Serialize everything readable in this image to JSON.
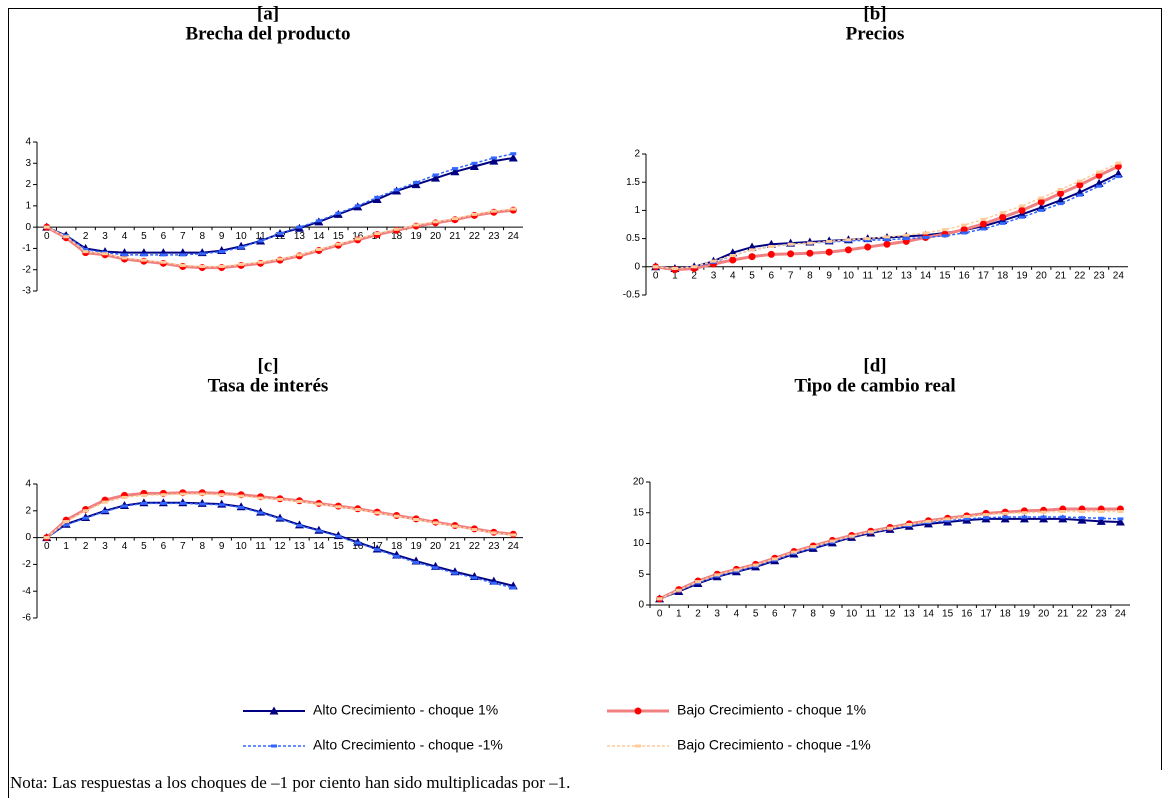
{
  "chart_data": [
    {
      "type": "line",
      "label": "[a]",
      "title": "Brecha del producto",
      "categories": [
        "0",
        "1",
        "2",
        "3",
        "4",
        "5",
        "6",
        "7",
        "8",
        "9",
        "10",
        "11",
        "12",
        "13",
        "14",
        "15",
        "16",
        "17",
        "18",
        "19",
        "20",
        "21",
        "22",
        "23",
        "24"
      ],
      "ylim": [
        -3,
        4
      ],
      "yticks": [
        -3,
        -2,
        -1,
        0,
        1,
        2,
        3,
        4
      ],
      "series": [
        {
          "name": "Alto Crecimiento - choque 1%",
          "color": "#000080",
          "marker": "triangle",
          "dashed": false,
          "values": [
            0,
            -0.4,
            -1.0,
            -1.15,
            -1.2,
            -1.2,
            -1.2,
            -1.2,
            -1.2,
            -1.1,
            -0.9,
            -0.65,
            -0.3,
            -0.05,
            0.25,
            0.6,
            0.95,
            1.3,
            1.7,
            2.0,
            2.3,
            2.6,
            2.85,
            3.1,
            3.25
          ]
        },
        {
          "name": "Bajo Crecimiento - choque 1%",
          "color": "#f08080",
          "marker": "circle",
          "dashed": false,
          "values": [
            0,
            -0.5,
            -1.2,
            -1.3,
            -1.5,
            -1.6,
            -1.7,
            -1.85,
            -1.9,
            -1.9,
            -1.8,
            -1.7,
            -1.55,
            -1.35,
            -1.1,
            -0.85,
            -0.6,
            -0.35,
            -0.15,
            0.05,
            0.2,
            0.35,
            0.55,
            0.7,
            0.8
          ]
        },
        {
          "name": "Alto Crecimiento - choque -1%",
          "color": "#3366ff",
          "marker": "dash",
          "dashed": true,
          "values": [
            0,
            -0.4,
            -1.05,
            -1.2,
            -1.3,
            -1.3,
            -1.3,
            -1.3,
            -1.25,
            -1.15,
            -0.95,
            -0.65,
            -0.3,
            0,
            0.3,
            0.65,
            1.0,
            1.4,
            1.75,
            2.1,
            2.45,
            2.75,
            3.0,
            3.25,
            3.45
          ]
        },
        {
          "name": "Bajo Crecimiento - choque -1%",
          "color": "#ffcc99",
          "marker": "dash",
          "dashed": true,
          "values": [
            0,
            -0.45,
            -1.15,
            -1.25,
            -1.45,
            -1.55,
            -1.65,
            -1.8,
            -1.85,
            -1.85,
            -1.75,
            -1.65,
            -1.5,
            -1.3,
            -1.05,
            -0.8,
            -0.55,
            -0.3,
            -0.1,
            0.1,
            0.25,
            0.4,
            0.6,
            0.75,
            0.85
          ]
        }
      ]
    },
    {
      "type": "line",
      "label": "[b]",
      "title": "Precios",
      "categories": [
        "0",
        "1",
        "2",
        "3",
        "4",
        "5",
        "6",
        "7",
        "8",
        "9",
        "10",
        "11",
        "12",
        "13",
        "14",
        "15",
        "16",
        "17",
        "18",
        "19",
        "20",
        "21",
        "22",
        "23",
        "24"
      ],
      "ylim": [
        -0.5,
        2
      ],
      "yticks": [
        -0.5,
        0,
        0.5,
        1,
        1.5,
        2
      ],
      "series": [
        {
          "name": "Alto Crecimiento - choque 1%",
          "color": "#000080",
          "marker": "triangle",
          "dashed": false,
          "values": [
            0,
            -0.03,
            0,
            0.1,
            0.25,
            0.35,
            0.4,
            0.42,
            0.44,
            0.46,
            0.48,
            0.5,
            0.52,
            0.54,
            0.56,
            0.6,
            0.65,
            0.72,
            0.82,
            0.93,
            1.05,
            1.18,
            1.32,
            1.48,
            1.65
          ]
        },
        {
          "name": "Bajo Crecimiento - choque 1%",
          "color": "#f08080",
          "marker": "circle",
          "dashed": false,
          "values": [
            0,
            -0.05,
            -0.03,
            0.05,
            0.12,
            0.18,
            0.22,
            0.23,
            0.24,
            0.26,
            0.3,
            0.35,
            0.4,
            0.45,
            0.52,
            0.58,
            0.66,
            0.76,
            0.88,
            1.0,
            1.15,
            1.3,
            1.45,
            1.62,
            1.78
          ]
        },
        {
          "name": "Alto Crecimiento - choque -1%",
          "color": "#3366ff",
          "marker": "dash",
          "dashed": true,
          "values": [
            0,
            -0.03,
            0,
            0.08,
            0.2,
            0.3,
            0.36,
            0.4,
            0.42,
            0.44,
            0.46,
            0.47,
            0.48,
            0.5,
            0.52,
            0.55,
            0.6,
            0.67,
            0.77,
            0.88,
            1.0,
            1.12,
            1.27,
            1.43,
            1.6
          ]
        },
        {
          "name": "Bajo Crecimiento - choque -1%",
          "color": "#ffcc99",
          "marker": "dash",
          "dashed": true,
          "values": [
            0,
            -0.03,
            0,
            0.1,
            0.2,
            0.3,
            0.36,
            0.4,
            0.42,
            0.45,
            0.48,
            0.5,
            0.53,
            0.56,
            0.6,
            0.66,
            0.74,
            0.84,
            0.96,
            1.08,
            1.22,
            1.37,
            1.52,
            1.68,
            1.84
          ]
        }
      ]
    },
    {
      "type": "line",
      "label": "[c]",
      "title": "Tasa de interés",
      "categories": [
        "0",
        "1",
        "2",
        "3",
        "4",
        "5",
        "6",
        "7",
        "8",
        "9",
        "10",
        "11",
        "12",
        "13",
        "14",
        "15",
        "16",
        "17",
        "18",
        "19",
        "20",
        "21",
        "22",
        "23",
        "24"
      ],
      "ylim": [
        -6,
        4
      ],
      "yticks": [
        -6,
        -4,
        -2,
        0,
        2,
        4
      ],
      "series": [
        {
          "name": "Alto Crecimiento - choque 1%",
          "color": "#000080",
          "marker": "triangle",
          "dashed": false,
          "values": [
            0,
            1.0,
            1.5,
            2.0,
            2.4,
            2.6,
            2.6,
            2.6,
            2.55,
            2.5,
            2.3,
            1.9,
            1.45,
            0.95,
            0.55,
            0.15,
            -0.35,
            -0.85,
            -1.3,
            -1.75,
            -2.15,
            -2.55,
            -2.9,
            -3.25,
            -3.6
          ]
        },
        {
          "name": "Bajo Crecimiento - choque 1%",
          "color": "#f08080",
          "marker": "circle",
          "dashed": false,
          "values": [
            0,
            1.3,
            2.1,
            2.8,
            3.15,
            3.3,
            3.3,
            3.35,
            3.35,
            3.3,
            3.2,
            3.05,
            2.9,
            2.75,
            2.55,
            2.35,
            2.15,
            1.9,
            1.65,
            1.4,
            1.15,
            0.9,
            0.65,
            0.4,
            0.25
          ]
        },
        {
          "name": "Alto Crecimiento - choque -1%",
          "color": "#3366ff",
          "marker": "dash",
          "dashed": true,
          "values": [
            0,
            0.95,
            1.45,
            1.95,
            2.35,
            2.55,
            2.55,
            2.55,
            2.5,
            2.45,
            2.25,
            1.85,
            1.4,
            0.9,
            0.5,
            0.1,
            -0.4,
            -0.9,
            -1.4,
            -1.85,
            -2.25,
            -2.65,
            -3.0,
            -3.4,
            -3.75
          ]
        },
        {
          "name": "Bajo Crecimiento - choque -1%",
          "color": "#ffcc99",
          "marker": "dash",
          "dashed": true,
          "values": [
            0,
            1.2,
            2.0,
            2.65,
            3.0,
            3.15,
            3.2,
            3.25,
            3.25,
            3.2,
            3.1,
            2.95,
            2.85,
            2.7,
            2.5,
            2.3,
            2.1,
            1.85,
            1.6,
            1.35,
            1.1,
            0.85,
            0.6,
            0.35,
            0.2
          ]
        }
      ]
    },
    {
      "type": "line",
      "label": "[d]",
      "title": "Tipo de cambio real",
      "categories": [
        "0",
        "1",
        "2",
        "3",
        "4",
        "5",
        "6",
        "7",
        "8",
        "9",
        "10",
        "11",
        "12",
        "13",
        "14",
        "15",
        "16",
        "17",
        "18",
        "19",
        "20",
        "21",
        "22",
        "23",
        "24"
      ],
      "ylim": [
        0,
        20
      ],
      "yticks": [
        0,
        5,
        10,
        15,
        20
      ],
      "series": [
        {
          "name": "Alto Crecimiento - choque 1%",
          "color": "#000080",
          "marker": "triangle",
          "dashed": false,
          "values": [
            1,
            2.2,
            3.5,
            4.6,
            5.4,
            6.2,
            7.2,
            8.3,
            9.2,
            10.1,
            11,
            11.7,
            12.3,
            12.8,
            13.2,
            13.5,
            13.8,
            14.0,
            14.0,
            14.0,
            14.0,
            14.0,
            13.8,
            13.6,
            13.5
          ]
        },
        {
          "name": "Bajo Crecimiento - choque 1%",
          "color": "#f08080",
          "marker": "circle",
          "dashed": false,
          "values": [
            1,
            2.5,
            3.9,
            5.0,
            5.8,
            6.6,
            7.6,
            8.7,
            9.6,
            10.5,
            11.3,
            12,
            12.6,
            13.2,
            13.7,
            14.1,
            14.5,
            14.9,
            15.1,
            15.3,
            15.4,
            15.6,
            15.6,
            15.6,
            15.6
          ]
        },
        {
          "name": "Alto Crecimiento - choque -1%",
          "color": "#3366ff",
          "marker": "dash",
          "dashed": true,
          "values": [
            1,
            2.3,
            3.6,
            4.7,
            5.5,
            6.3,
            7.3,
            8.4,
            9.3,
            10.2,
            11.1,
            11.8,
            12.4,
            12.9,
            13.4,
            13.7,
            14.0,
            14.2,
            14.3,
            14.3,
            14.3,
            14.3,
            14.2,
            14.1,
            14.0
          ]
        },
        {
          "name": "Bajo Crecimiento - choque -1%",
          "color": "#ffcc99",
          "marker": "dash",
          "dashed": true,
          "values": [
            1,
            2.4,
            3.8,
            4.9,
            5.7,
            6.5,
            7.5,
            8.6,
            9.5,
            10.4,
            11.2,
            11.9,
            12.5,
            13.1,
            13.6,
            14.0,
            14.4,
            14.7,
            14.9,
            15.0,
            15.1,
            15.2,
            15.2,
            15.2,
            15.2
          ]
        }
      ]
    }
  ],
  "note": "Nota: Las respuestas a los choques de –1 por ciento han sido multiplicadas por –1."
}
